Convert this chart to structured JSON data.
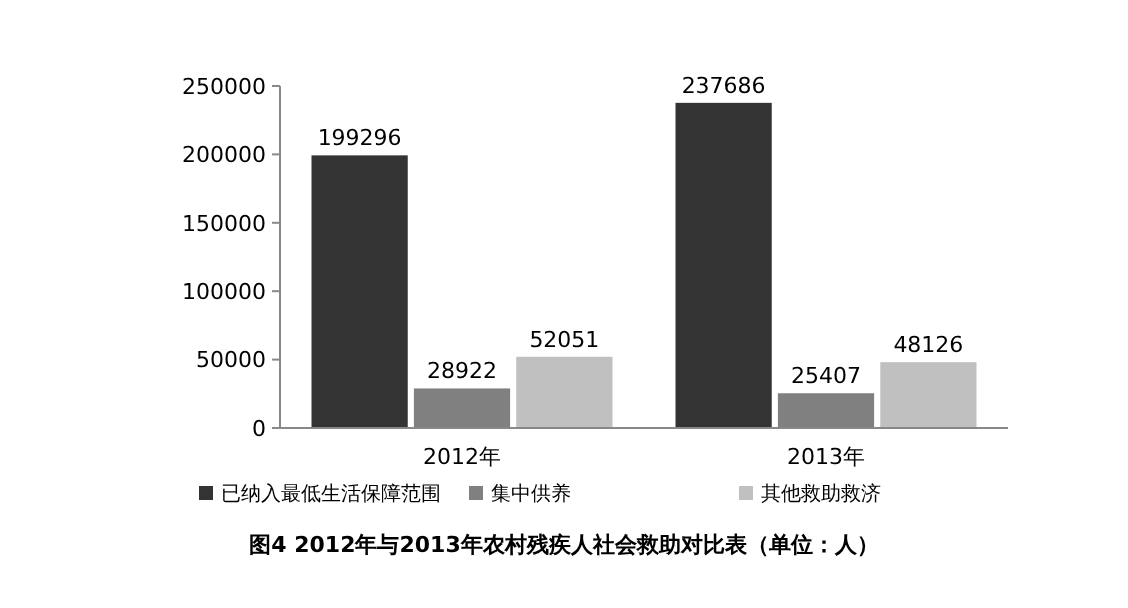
{
  "chart_data": {
    "type": "bar",
    "title": "图4 2012年与2013年农村残疾人社会救助对比表（单位：人）",
    "categories": [
      "2012年",
      "2013年"
    ],
    "series": [
      {
        "name": "已纳入最低生活保障范围",
        "color": "#333333",
        "values": [
          199296,
          237686
        ]
      },
      {
        "name": "集中供养",
        "color": "#808080",
        "values": [
          28922,
          25407
        ]
      },
      {
        "name": "其他救助救济",
        "color": "#c0c0c0",
        "values": [
          52051,
          48126
        ]
      }
    ],
    "ylim": [
      0,
      250000
    ],
    "yticks": [
      0,
      50000,
      100000,
      150000,
      200000,
      250000
    ],
    "data_labels": true,
    "legend": "bottom",
    "grid": false
  }
}
